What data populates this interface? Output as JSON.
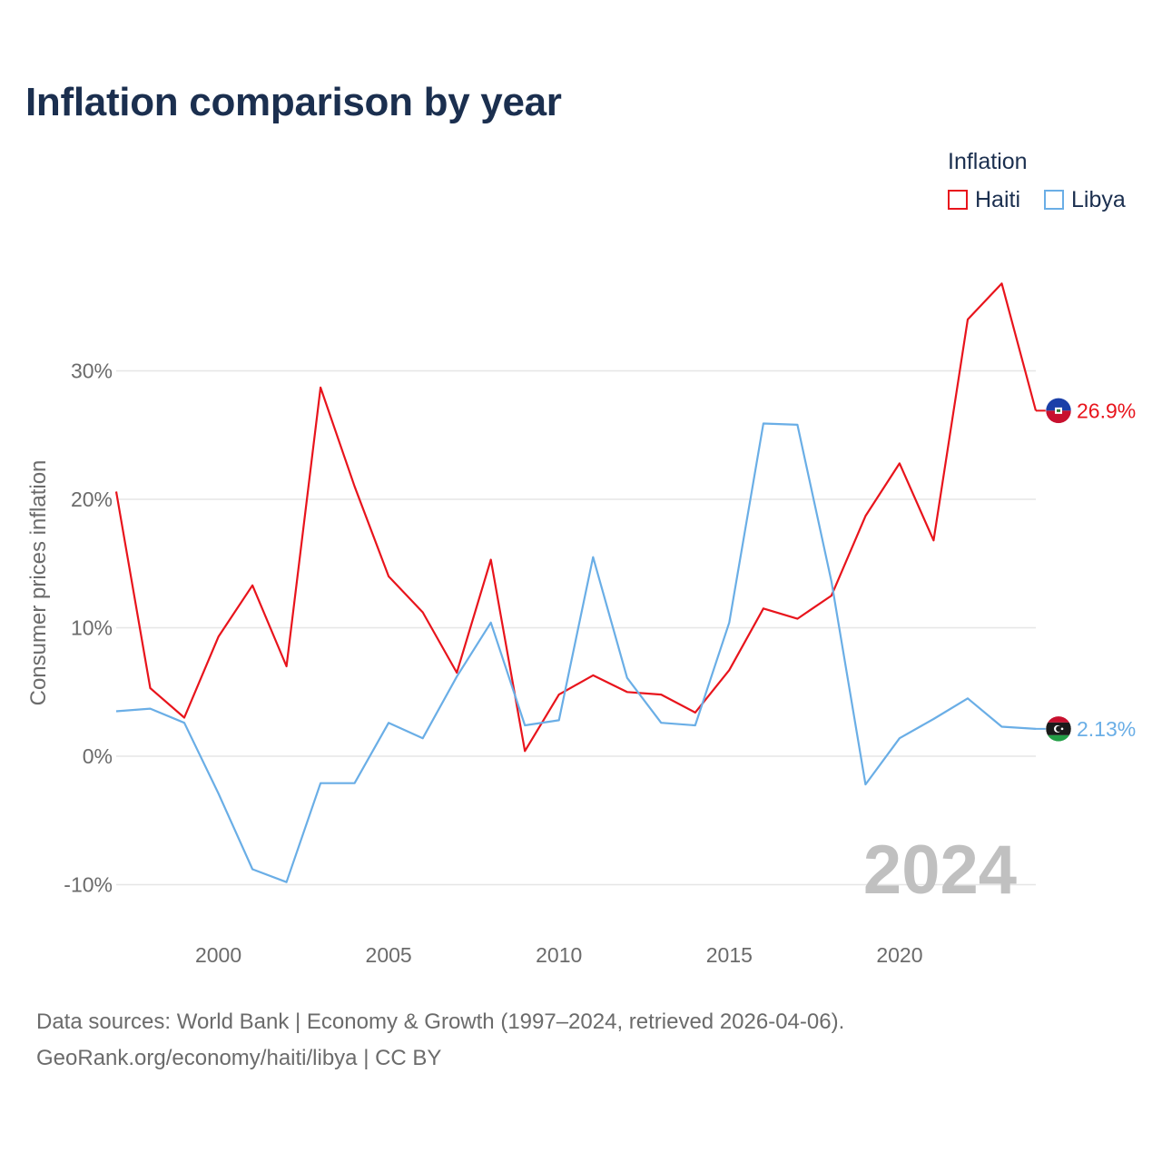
{
  "title": "Inflation comparison by year",
  "legend": {
    "title": "Inflation",
    "items": [
      {
        "name": "Haiti",
        "color": "#e8141c"
      },
      {
        "name": "Libya",
        "color": "#6aaee6"
      }
    ]
  },
  "year_watermark": "2024",
  "footer": {
    "line1": "Data sources: World Bank | Economy & Growth (1997–2024, retrieved 2026-04-06).",
    "line2": "GeoRank.org/economy/haiti/libya | CC BY"
  },
  "chart_data": {
    "type": "line",
    "title": "Inflation comparison by year",
    "xlabel": "",
    "ylabel": "Consumer prices inflation",
    "xlim": [
      1997,
      2024
    ],
    "ylim": [
      -12,
      37
    ],
    "x_ticks": [
      2000,
      2005,
      2010,
      2015,
      2020
    ],
    "x_tick_labels": [
      "2000",
      "2005",
      "2010",
      "2015",
      "2020"
    ],
    "y_ticks": [
      -10,
      0,
      10,
      20,
      30
    ],
    "y_tick_labels": [
      "-10%",
      "0%",
      "10%",
      "20%",
      "30%"
    ],
    "grid": true,
    "x": [
      1997,
      1998,
      1999,
      2000,
      2001,
      2002,
      2003,
      2004,
      2005,
      2006,
      2007,
      2008,
      2009,
      2010,
      2011,
      2012,
      2013,
      2014,
      2015,
      2016,
      2017,
      2018,
      2019,
      2020,
      2021,
      2022,
      2023,
      2024
    ],
    "series": [
      {
        "name": "Haiti",
        "color": "#e8141c",
        "end_label": "26.9%",
        "values": [
          20.6,
          5.3,
          3.0,
          9.3,
          13.3,
          7.0,
          28.7,
          21.0,
          14.0,
          11.2,
          6.5,
          15.3,
          0.4,
          4.8,
          6.3,
          5.0,
          4.8,
          3.4,
          6.7,
          11.5,
          10.7,
          12.5,
          18.7,
          22.8,
          16.8,
          34.0,
          36.8,
          26.9
        ]
      },
      {
        "name": "Libya",
        "color": "#6aaee6",
        "end_label": "2.13%",
        "values": [
          3.5,
          3.7,
          2.6,
          -2.9,
          -8.8,
          -9.8,
          -2.1,
          -2.1,
          2.6,
          1.4,
          6.2,
          10.4,
          2.4,
          2.8,
          15.5,
          6.1,
          2.6,
          2.4,
          10.4,
          25.9,
          25.8,
          13.6,
          -2.2,
          1.4,
          2.9,
          4.5,
          2.3,
          2.13
        ]
      }
    ]
  }
}
